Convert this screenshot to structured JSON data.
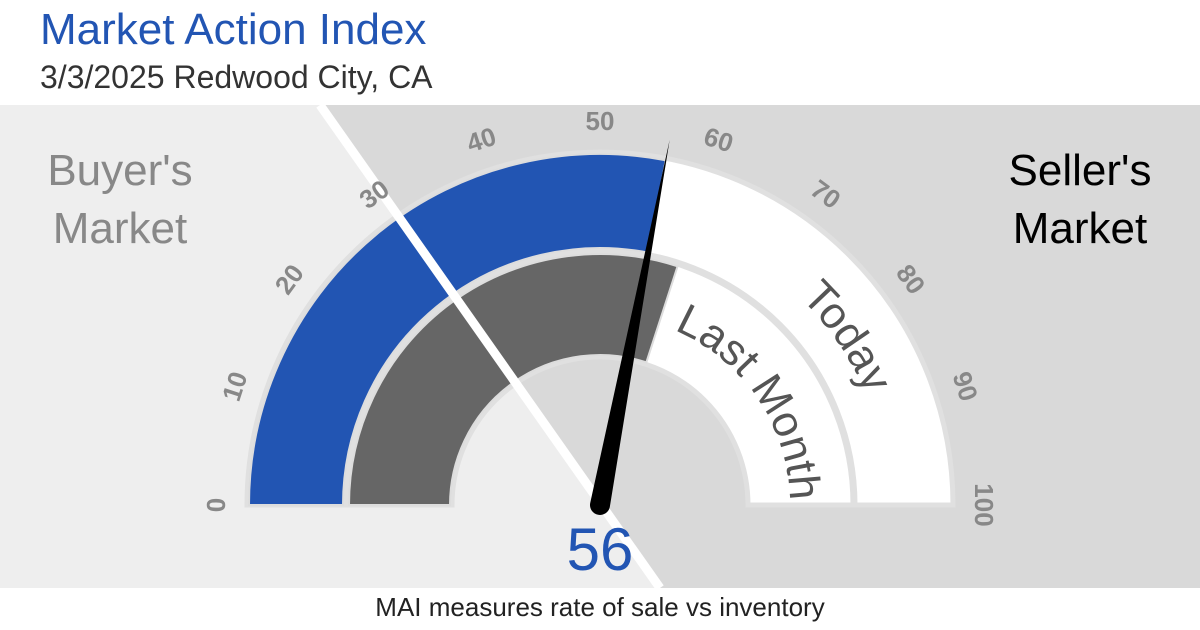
{
  "chart_data": {
    "type": "gauge",
    "title": "Market Action Index",
    "subtitle": "3/3/2025 Redwood City, CA",
    "caption": "MAI measures rate of sale vs inventory",
    "zones": [
      {
        "label": "Buyer's Market",
        "color": "#eeeeee"
      },
      {
        "label": "Seller's Market",
        "color": "#d9d9d9"
      }
    ],
    "lim": [
      0,
      100
    ],
    "ticks": [
      0,
      10,
      20,
      30,
      40,
      50,
      60,
      70,
      80,
      90,
      100
    ],
    "series": [
      {
        "name": "Today",
        "color": "#2255b3",
        "value": 56
      },
      {
        "name": "Last Month",
        "color": "#666666",
        "value": 60
      }
    ]
  }
}
